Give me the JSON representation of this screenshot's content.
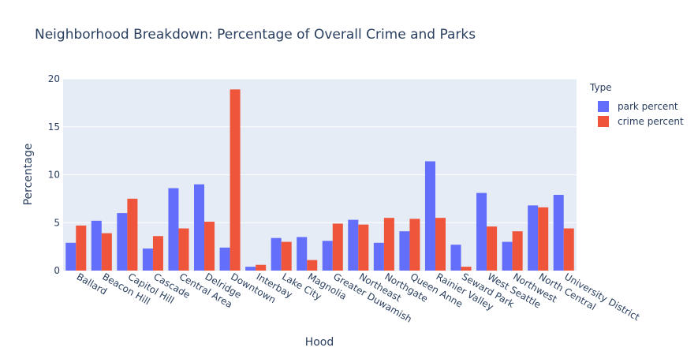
{
  "chart_data": {
    "type": "bar",
    "title": "Neighborhood Breakdown: Percentage of Overall Crime and Parks",
    "xlabel": "Hood",
    "ylabel": "Percentage",
    "ylim": [
      0,
      20
    ],
    "yticks": [
      0,
      5,
      10,
      15,
      20
    ],
    "grid": true,
    "legend_title": "Type",
    "legend_placement": "right",
    "categories": [
      "Ballard",
      "Beacon Hill",
      "Capitol Hill",
      "Cascade",
      "Central Area",
      "Delridge",
      "Downtown",
      "Interbay",
      "Lake City",
      "Magnolia",
      "Greater Duwamish",
      "Northeast",
      "Northgate",
      "Queen Anne",
      "Rainier Valley",
      "Seward Park",
      "West Seattle",
      "Northwest",
      "North Central",
      "University District"
    ],
    "series": [
      {
        "name": "park percent",
        "color": "#636efa",
        "values": [
          2.9,
          5.2,
          6.0,
          2.3,
          8.6,
          9.0,
          2.4,
          0.4,
          3.4,
          3.5,
          3.1,
          5.3,
          2.9,
          4.1,
          11.4,
          2.7,
          8.1,
          3.0,
          6.8,
          7.9
        ]
      },
      {
        "name": "crime percent",
        "color": "#ef553b",
        "values": [
          4.7,
          3.9,
          7.5,
          3.6,
          4.4,
          5.1,
          18.9,
          0.6,
          3.0,
          1.1,
          4.9,
          4.8,
          5.5,
          5.4,
          5.5,
          0.4,
          4.6,
          4.1,
          6.6,
          4.4
        ]
      }
    ]
  }
}
